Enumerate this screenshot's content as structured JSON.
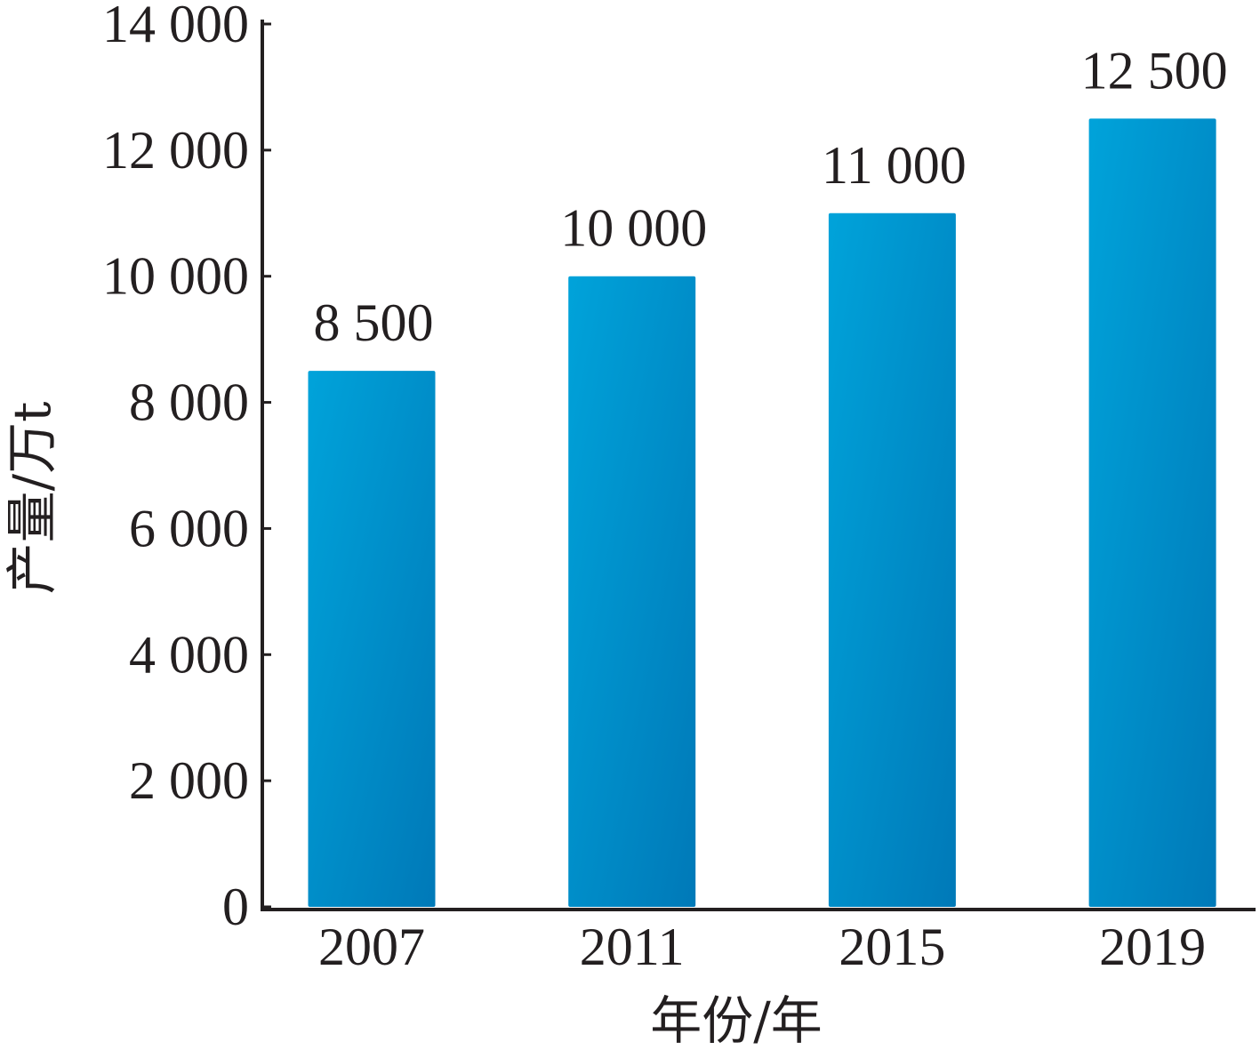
{
  "chart_data": {
    "type": "bar",
    "categories": [
      "2007",
      "2011",
      "2015",
      "2019"
    ],
    "values": [
      8500,
      10000,
      11000,
      12500
    ],
    "data_labels": [
      "8 500",
      "10 000",
      "11 000",
      "12 500"
    ],
    "xlabel": "年份/年",
    "ylabel": "产量/万t",
    "ylim": [
      0,
      14000
    ],
    "y_ticks": [
      0,
      2000,
      4000,
      6000,
      8000,
      10000,
      12000,
      14000
    ],
    "y_tick_labels": [
      "0",
      "2 000",
      "4 000",
      "6 000",
      "8 000",
      "10 000",
      "12 000",
      "14 000"
    ],
    "grid": false
  },
  "colors": {
    "bar_light": "#00a3da",
    "bar_dark": "#0079b8",
    "axis": "#231f20",
    "text": "#231f20"
  }
}
